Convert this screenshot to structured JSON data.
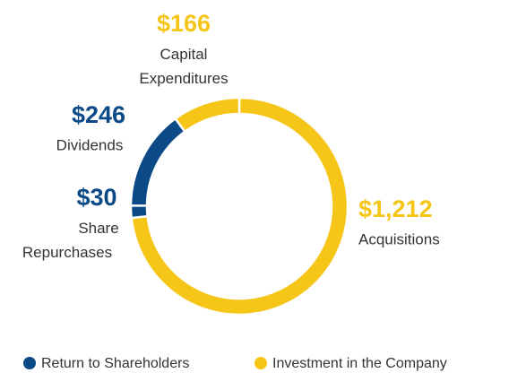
{
  "chart_data": {
    "type": "donut",
    "categories": [
      "Acquisitions",
      "Share Repurchases",
      "Dividends",
      "Capital Expenditures"
    ],
    "values": [
      1212,
      30,
      246,
      166
    ],
    "value_labels": [
      "$1,212",
      "$30",
      "$246",
      "$166"
    ],
    "colors": [
      "#f5c518",
      "#0b4a86",
      "#0b4a86",
      "#f5c518"
    ],
    "legend": [
      {
        "name": "Return to Shareholders",
        "color": "#0b4a86"
      },
      {
        "name": "Investment in the Company",
        "color": "#f5c518"
      }
    ]
  }
}
